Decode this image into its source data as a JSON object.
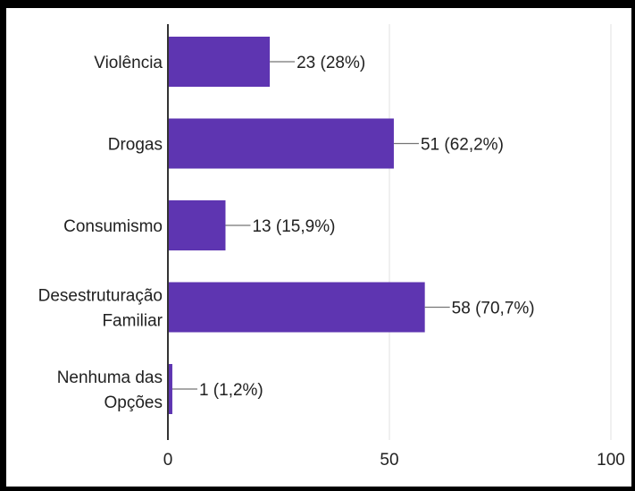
{
  "chart_data": {
    "type": "bar",
    "orientation": "horizontal",
    "categories": [
      [
        "Violência"
      ],
      [
        "Drogas"
      ],
      [
        "Consumismo"
      ],
      [
        "Desestruturação",
        "Familiar"
      ],
      [
        "Nenhuma das",
        "Opções"
      ]
    ],
    "values": [
      23,
      51,
      13,
      58,
      1
    ],
    "data_labels": [
      "23 (28%)",
      "51 (62,2%)",
      "13 (15,9%)",
      "58 (70,7%)",
      "1 (1,2%)"
    ],
    "xlim": [
      0,
      100
    ],
    "xticks": [
      0,
      50,
      100
    ],
    "grid": true,
    "bar_color": "#5e35b1",
    "gridline_color": "#e0e0e0",
    "axis_color": "#333333",
    "text_color": "#212121"
  }
}
